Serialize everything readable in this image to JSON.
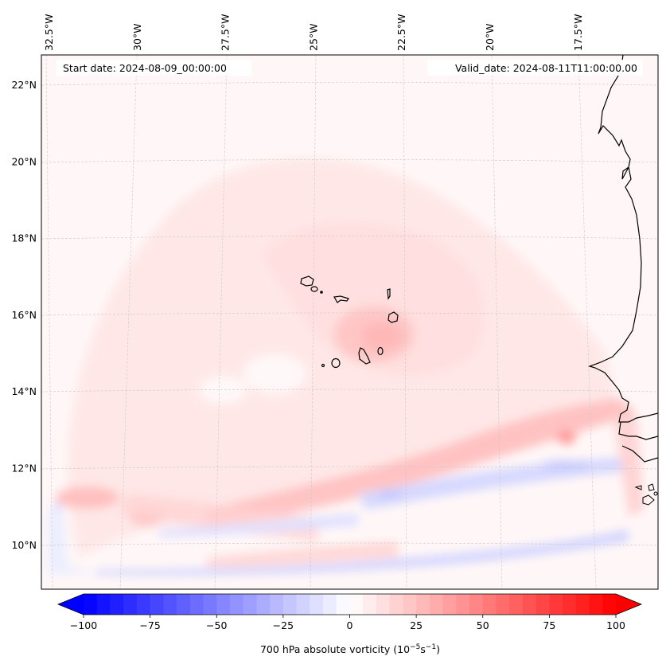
{
  "chart_data": {
    "type": "heatmap",
    "title": "",
    "variable": "700 hPa absolute vorticity",
    "units": "10^-5 s^-1",
    "colorbar": {
      "label_prefix": "700 hPa absolute vorticity (10",
      "label_exp1": "−5",
      "label_mid": "s",
      "label_exp2": "−1",
      "label_suffix": ")",
      "range": [
        -100,
        100
      ],
      "extend": "both",
      "levels_count": 40,
      "colormap": "bwr",
      "ticks": [
        -100,
        -75,
        -50,
        -25,
        0,
        25,
        50,
        75,
        100
      ],
      "tick_labels": [
        "−100",
        "−75",
        "−50",
        "−25",
        "0",
        "25",
        "50",
        "75",
        "100"
      ],
      "low_color": "#0000ff",
      "mid_color": "#ffffff",
      "high_color": "#ff0000"
    },
    "lon_ticks": [
      -32.5,
      -30,
      -27.5,
      -25,
      -22.5,
      -20,
      -17.5
    ],
    "lon_labels": [
      "32.5°W",
      "30°W",
      "27.5°W",
      "25°W",
      "22.5°W",
      "20°W",
      "17.5°W"
    ],
    "lat_ticks": [
      22,
      20,
      18,
      16,
      14,
      12,
      10
    ],
    "lat_labels": [
      "22°N",
      "20°N",
      "18°N",
      "16°N",
      "14°N",
      "12°N",
      "10°N"
    ],
    "extent": {
      "lon": [
        -33,
        -16
      ],
      "lat": [
        8.9,
        22.8
      ]
    },
    "grid": true,
    "features": [
      {
        "name": "vortex core near Cape Verde",
        "lon": -23.3,
        "lat": 15.2,
        "value": 20
      },
      {
        "name": "broad cyclonic swirl",
        "lon": -25,
        "lat": 16.5,
        "value": 8
      },
      {
        "name": "ITCZ positive band",
        "lon": -22,
        "lat": 12.2,
        "value": 25
      },
      {
        "name": "local maximum",
        "lon": -17.9,
        "lat": 12.8,
        "value": 35
      },
      {
        "name": "negative band",
        "lon": -20,
        "lat": 11.6,
        "value": -18
      },
      {
        "name": "southern negative band",
        "lon": -26,
        "lat": 9.4,
        "value": -22
      },
      {
        "name": "western positive patch",
        "lon": -31.5,
        "lat": 11.1,
        "value": 22
      },
      {
        "name": "western negative patch",
        "lon": -32.5,
        "lat": 10.8,
        "value": -20
      }
    ]
  },
  "annotations": {
    "start_date": "Start date: 2024-08-09_00:00:00",
    "valid_date": "Valid_date: 2024-08-11T11:00:00.00"
  }
}
